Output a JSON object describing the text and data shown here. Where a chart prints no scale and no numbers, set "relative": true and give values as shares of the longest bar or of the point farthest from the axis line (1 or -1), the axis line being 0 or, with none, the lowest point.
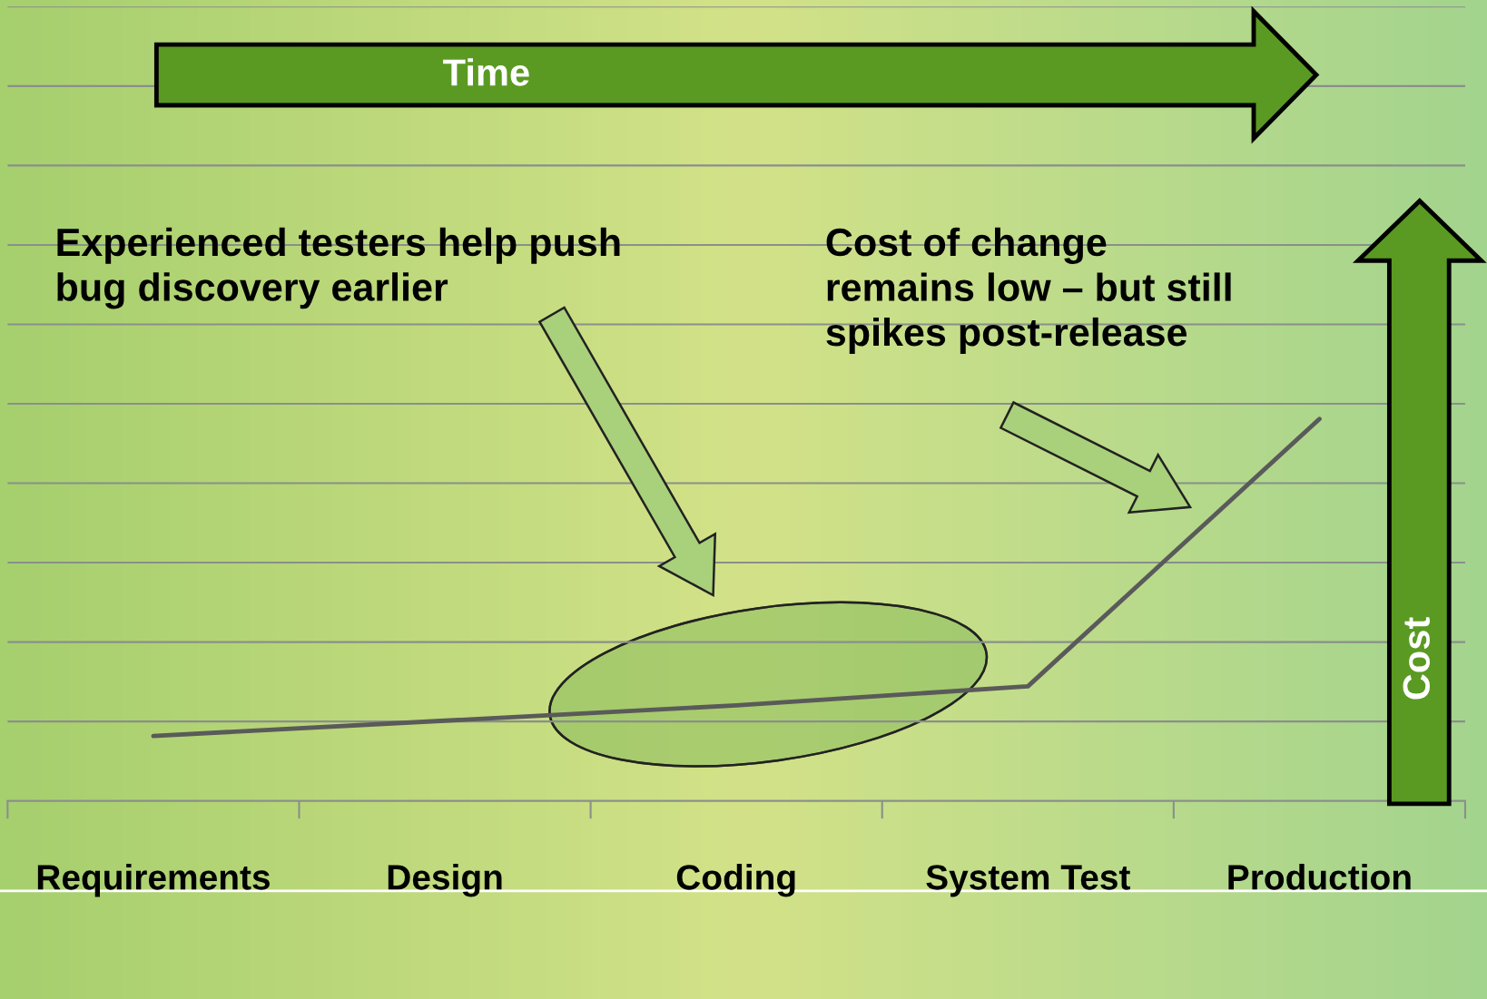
{
  "chart_data": {
    "type": "line",
    "relative": true,
    "grid": "y",
    "color": "#5a5a5a",
    "categories": [
      "Requirements",
      "Design",
      "Coding",
      "System Test",
      "Production"
    ],
    "values": [
      0.17,
      0.21,
      0.25,
      0.3,
      1
    ],
    "annotations": [
      "Time",
      "Cost",
      "Experienced testers help push\nbug discovery earlier",
      "Cost of change\nremains low – but still\nspikes post-release"
    ]
  }
}
